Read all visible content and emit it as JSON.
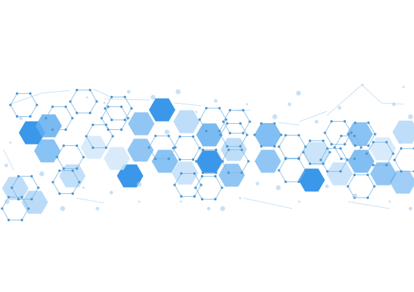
{
  "artwork": {
    "subject": "hexagon-network-graphic",
    "palette": {
      "deep": "#3a97ea",
      "mid": "#62aef0",
      "light": "#a8d2f6",
      "pale": "#cfe6fa",
      "outline": "#7eb8e4",
      "node": "#4f97cf",
      "dot": "#9cc9ec"
    }
  }
}
